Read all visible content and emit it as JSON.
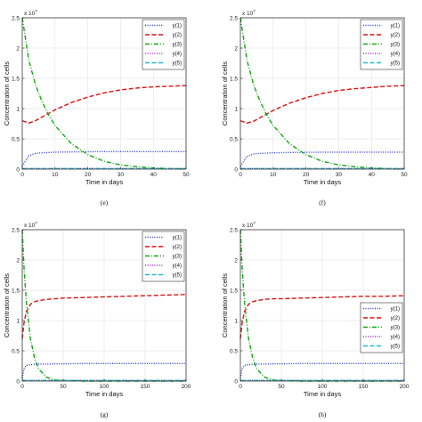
{
  "chart_data": [
    {
      "type": "line",
      "caption": "(e)",
      "xlabel": "Time in days",
      "ylabel": "Concentration of cells",
      "xlim": [
        0,
        50
      ],
      "ylim": [
        0,
        2.5
      ],
      "y_multiplier": "x 10^7",
      "y_multiplier_base": "x 10",
      "y_multiplier_exp": "7",
      "xticks": [
        0,
        10,
        20,
        30,
        40,
        50
      ],
      "yticks": [
        0,
        0.5,
        1,
        1.5,
        2,
        2.5
      ],
      "grid": true,
      "legend_position": "top-right",
      "x": [
        0,
        2,
        4,
        6,
        8,
        10,
        15,
        20,
        25,
        30,
        35,
        40,
        45,
        50
      ],
      "series": [
        {
          "name": "y(1)",
          "color": "#2233dd",
          "dash": "dotted",
          "values": [
            0.05,
            0.22,
            0.26,
            0.27,
            0.275,
            0.28,
            0.285,
            0.288,
            0.29,
            0.29,
            0.29,
            0.29,
            0.29,
            0.29
          ]
        },
        {
          "name": "y(2)",
          "color": "#dd1111",
          "dash": "dashed",
          "values": [
            0.8,
            0.76,
            0.8,
            0.86,
            0.92,
            0.98,
            1.1,
            1.19,
            1.26,
            1.31,
            1.34,
            1.36,
            1.37,
            1.38
          ]
        },
        {
          "name": "y(3)",
          "color": "#11aa11",
          "dash": "dashdot",
          "values": [
            2.5,
            1.8,
            1.4,
            1.12,
            0.9,
            0.72,
            0.42,
            0.24,
            0.13,
            0.07,
            0.04,
            0.02,
            0.01,
            0.0
          ]
        },
        {
          "name": "y(4)",
          "color": "#aa22cc",
          "dash": "dotted",
          "values": [
            0.01,
            0.01,
            0.01,
            0.01,
            0.01,
            0.01,
            0.01,
            0.01,
            0.01,
            0.01,
            0.01,
            0.01,
            0.01,
            0.01
          ]
        },
        {
          "name": "y(5)",
          "color": "#22bbcc",
          "dash": "dashed",
          "values": [
            0.01,
            0.01,
            0.01,
            0.01,
            0.01,
            0.01,
            0.01,
            0.01,
            0.01,
            0.01,
            0.01,
            0.01,
            0.01,
            0.01
          ]
        }
      ]
    },
    {
      "type": "line",
      "caption": "(f)",
      "xlabel": "Time in days",
      "ylabel": "Concentration of cells",
      "xlim": [
        0,
        50
      ],
      "ylim": [
        0,
        2.5
      ],
      "y_multiplier": "x 10^7",
      "y_multiplier_base": "x 10",
      "y_multiplier_exp": "7",
      "xticks": [
        0,
        10,
        20,
        30,
        40,
        50
      ],
      "yticks": [
        0,
        0.5,
        1,
        1.5,
        2,
        2.5
      ],
      "grid": true,
      "legend_position": "top-right",
      "x": [
        0,
        2,
        4,
        6,
        8,
        10,
        15,
        20,
        25,
        30,
        35,
        40,
        45,
        50
      ],
      "series": [
        {
          "name": "y(1)",
          "color": "#2233dd",
          "dash": "dotted",
          "values": [
            0.05,
            0.21,
            0.25,
            0.26,
            0.265,
            0.27,
            0.275,
            0.278,
            0.28,
            0.28,
            0.28,
            0.28,
            0.28,
            0.28
          ]
        },
        {
          "name": "y(2)",
          "color": "#dd1111",
          "dash": "dashed",
          "values": [
            0.8,
            0.76,
            0.79,
            0.85,
            0.91,
            0.97,
            1.09,
            1.18,
            1.25,
            1.3,
            1.33,
            1.35,
            1.37,
            1.38
          ]
        },
        {
          "name": "y(3)",
          "color": "#11aa11",
          "dash": "dashdot",
          "values": [
            2.5,
            1.8,
            1.4,
            1.12,
            0.9,
            0.72,
            0.42,
            0.24,
            0.13,
            0.07,
            0.04,
            0.02,
            0.01,
            0.0
          ]
        },
        {
          "name": "y(4)",
          "color": "#aa22cc",
          "dash": "dotted",
          "values": [
            0.01,
            0.01,
            0.01,
            0.01,
            0.01,
            0.01,
            0.01,
            0.01,
            0.01,
            0.01,
            0.01,
            0.01,
            0.01,
            0.01
          ]
        },
        {
          "name": "y(5)",
          "color": "#22bbcc",
          "dash": "dashed",
          "values": [
            0.01,
            0.01,
            0.01,
            0.01,
            0.01,
            0.01,
            0.01,
            0.01,
            0.01,
            0.01,
            0.01,
            0.01,
            0.01,
            0.01
          ]
        }
      ]
    },
    {
      "type": "line",
      "caption": "(g)",
      "xlabel": "Time in days",
      "ylabel": "Concentration of cells",
      "xlim": [
        0,
        200
      ],
      "ylim": [
        0,
        2.5
      ],
      "y_multiplier": "x 10^7",
      "y_multiplier_base": "x 10",
      "y_multiplier_exp": "7",
      "xticks": [
        0,
        50,
        100,
        150,
        200
      ],
      "yticks": [
        0,
        0.5,
        1,
        1.5,
        2,
        2.5
      ],
      "grid": true,
      "legend_position": "top-right",
      "x": [
        0,
        2,
        5,
        10,
        15,
        20,
        30,
        40,
        50,
        75,
        100,
        125,
        150,
        175,
        200
      ],
      "series": [
        {
          "name": "y(1)",
          "color": "#2233dd",
          "dash": "dotted",
          "values": [
            0.05,
            0.2,
            0.26,
            0.27,
            0.275,
            0.28,
            0.28,
            0.285,
            0.285,
            0.29,
            0.29,
            0.29,
            0.29,
            0.29,
            0.29
          ]
        },
        {
          "name": "y(2)",
          "color": "#dd1111",
          "dash": "dashed",
          "values": [
            0.7,
            0.95,
            1.15,
            1.27,
            1.31,
            1.33,
            1.35,
            1.36,
            1.37,
            1.38,
            1.39,
            1.4,
            1.41,
            1.42,
            1.43
          ]
        },
        {
          "name": "y(3)",
          "color": "#11aa11",
          "dash": "dashdot",
          "values": [
            2.5,
            1.9,
            1.3,
            0.7,
            0.38,
            0.2,
            0.06,
            0.02,
            0.01,
            0.0,
            0.0,
            0.0,
            0.0,
            0.0,
            0.0
          ]
        },
        {
          "name": "y(4)",
          "color": "#aa22cc",
          "dash": "dotted",
          "values": [
            0.01,
            0.01,
            0.01,
            0.01,
            0.01,
            0.01,
            0.01,
            0.01,
            0.01,
            0.01,
            0.01,
            0.01,
            0.01,
            0.01,
            0.01
          ]
        },
        {
          "name": "y(5)",
          "color": "#22bbcc",
          "dash": "dashed",
          "values": [
            0.01,
            0.01,
            0.01,
            0.01,
            0.01,
            0.01,
            0.01,
            0.01,
            0.01,
            0.01,
            0.01,
            0.01,
            0.01,
            0.01,
            0.01
          ]
        }
      ]
    },
    {
      "type": "line",
      "caption": "(h)",
      "xlabel": "Time in days",
      "ylabel": "Concentration of cells",
      "xlim": [
        0,
        200
      ],
      "ylim": [
        0,
        2.5
      ],
      "y_multiplier": "x 10^7",
      "y_multiplier_base": "x 10",
      "y_multiplier_exp": "7",
      "xticks": [
        0,
        50,
        100,
        150,
        200
      ],
      "yticks": [
        0,
        0.5,
        1,
        1.5,
        2,
        2.5
      ],
      "grid": true,
      "legend_position": "bottom-right",
      "x": [
        0,
        2,
        5,
        10,
        15,
        20,
        30,
        40,
        50,
        75,
        100,
        125,
        150,
        175,
        200
      ],
      "series": [
        {
          "name": "y(1)",
          "color": "#2233dd",
          "dash": "dotted",
          "values": [
            0.05,
            0.2,
            0.26,
            0.27,
            0.275,
            0.28,
            0.28,
            0.285,
            0.285,
            0.29,
            0.29,
            0.29,
            0.29,
            0.29,
            0.29
          ]
        },
        {
          "name": "y(2)",
          "color": "#dd1111",
          "dash": "dashed",
          "values": [
            0.7,
            0.95,
            1.15,
            1.27,
            1.31,
            1.33,
            1.35,
            1.36,
            1.36,
            1.37,
            1.38,
            1.39,
            1.4,
            1.4,
            1.41
          ]
        },
        {
          "name": "y(3)",
          "color": "#11aa11",
          "dash": "dashdot",
          "values": [
            2.5,
            1.9,
            1.3,
            0.7,
            0.38,
            0.2,
            0.06,
            0.02,
            0.01,
            0.0,
            0.0,
            0.0,
            0.0,
            0.0,
            0.0
          ]
        },
        {
          "name": "y(4)",
          "color": "#aa22cc",
          "dash": "dotted",
          "values": [
            0.01,
            0.01,
            0.01,
            0.01,
            0.01,
            0.01,
            0.01,
            0.01,
            0.01,
            0.01,
            0.01,
            0.01,
            0.01,
            0.01,
            0.01
          ]
        },
        {
          "name": "y(5)",
          "color": "#22bbcc",
          "dash": "dashed",
          "values": [
            0.01,
            0.01,
            0.01,
            0.01,
            0.01,
            0.01,
            0.01,
            0.01,
            0.01,
            0.01,
            0.01,
            0.01,
            0.01,
            0.01,
            0.01
          ]
        }
      ]
    }
  ]
}
